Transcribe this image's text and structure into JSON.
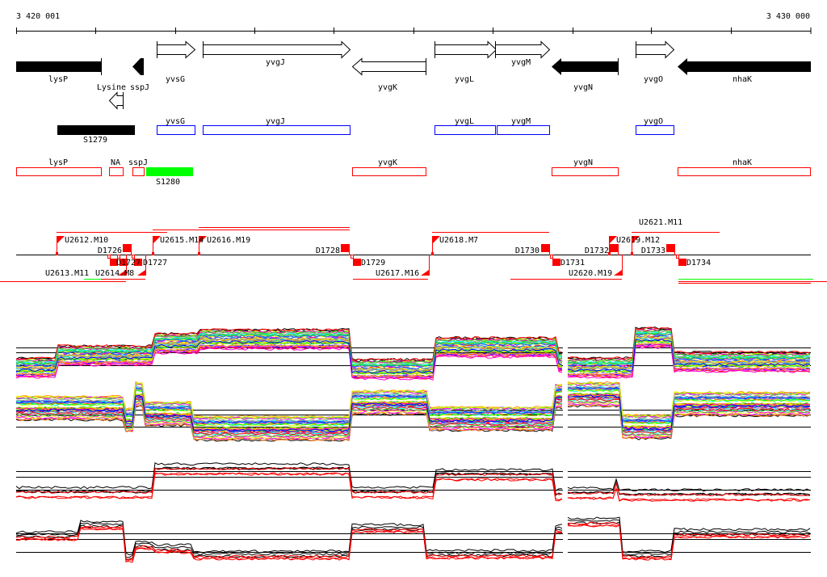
{
  "ruler": {
    "start_label": "3 420 001",
    "end_label": "3 430 000"
  },
  "genes": {
    "lysP": "lysP",
    "sspJ": "sspJ",
    "lysine": "Lysine",
    "yvsG": "yvsG",
    "yvgJ": "yvgJ",
    "yvgK": "yvgK",
    "yvgL": "yvgL",
    "yvgM": "yvgM",
    "yvgN": "yvgN",
    "yvgO": "yvgO",
    "nhaK": "nhaK"
  },
  "blue_track": {
    "yvsG": "yvsG",
    "yvgJ": "yvgJ",
    "yvgL": "yvgL",
    "yvgM": "yvgM",
    "yvgO": "yvgO",
    "S1279": "S1279"
  },
  "red_track": {
    "lysP": "lysP",
    "NA": "NA",
    "sspJ": "sspJ",
    "yvgK": "yvgK",
    "yvgN": "yvgN",
    "nhaK": "nhaK",
    "S1280": "S1280"
  },
  "features": {
    "U2612": "U2612.M10",
    "D1726": "D1726",
    "U2615": "U2615.M14",
    "U2616": "U2616.M19",
    "D1728": "D1728",
    "U2618": "U2618.M7",
    "D1730": "D1730",
    "D1732": "D1732",
    "U2619": "U2619.M12",
    "U2621": "U2621.M11",
    "D1733": "D1733",
    "U2613": "U2613.M11",
    "U2614": "U2614.M8",
    "D172x": "D1727",
    "D1727": "D1727",
    "D1729": "D1729",
    "U2617": "U2617.M16",
    "D1731": "D1731",
    "U2620": "U2620.M19",
    "D1734": "D1734"
  },
  "colors": {
    "forward_gene": "#ffffff",
    "reverse_gene": "#000000",
    "blue_box": "#0000ff",
    "red_box": "#ff0000",
    "green_box": "#00ff00",
    "feature": "#ff0000"
  }
}
